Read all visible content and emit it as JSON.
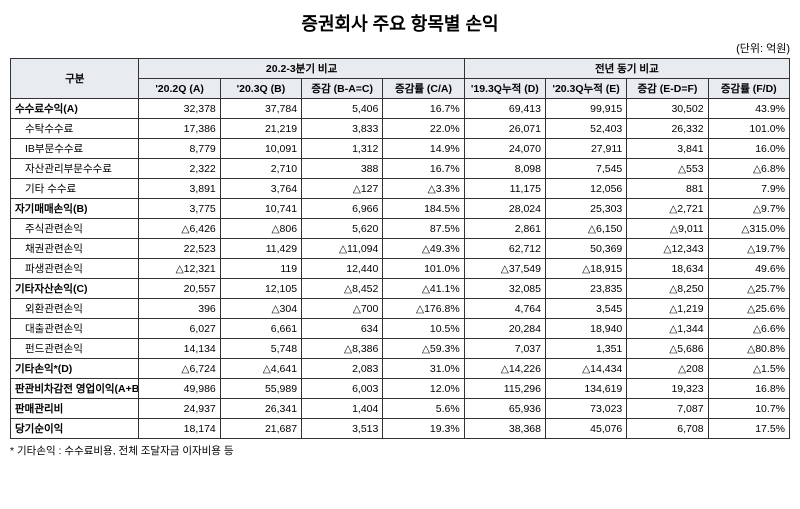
{
  "title": "증권회사 주요 항목별 손익",
  "unit": "(단위: 억원)",
  "footnote": "* 기타손익 : 수수료비용, 전체 조달자금 이자비용 등",
  "header": {
    "col0": "구분",
    "group1": "20.2-3분기 비교",
    "group2": "전년 동기 비교",
    "h1": "'20.2Q\n(A)",
    "h2": "'20.3Q\n(B)",
    "h3": "증감\n(B-A=C)",
    "h4": "증감률\n(C/A)",
    "h5": "'19.3Q누적\n(D)",
    "h6": "'20.3Q누적\n(E)",
    "h7": "증감\n(E-D=F)",
    "h8": "증감률\n(F/D)"
  },
  "rows": [
    {
      "label": "수수료수익(A)",
      "sub": false,
      "c": [
        "32,378",
        "37,784",
        "5,406",
        "16.7%",
        "69,413",
        "99,915",
        "30,502",
        "43.9%"
      ]
    },
    {
      "label": "수탁수수료",
      "sub": true,
      "c": [
        "17,386",
        "21,219",
        "3,833",
        "22.0%",
        "26,071",
        "52,403",
        "26,332",
        "101.0%"
      ]
    },
    {
      "label": "IB부문수수료",
      "sub": true,
      "c": [
        "8,779",
        "10,091",
        "1,312",
        "14.9%",
        "24,070",
        "27,911",
        "3,841",
        "16.0%"
      ]
    },
    {
      "label": "자산관리부문수수료",
      "sub": true,
      "c": [
        "2,322",
        "2,710",
        "388",
        "16.7%",
        "8,098",
        "7,545",
        "△553",
        "△6.8%"
      ]
    },
    {
      "label": "기타 수수료",
      "sub": true,
      "c": [
        "3,891",
        "3,764",
        "△127",
        "△3.3%",
        "11,175",
        "12,056",
        "881",
        "7.9%"
      ]
    },
    {
      "label": "자기매매손익(B)",
      "sub": false,
      "c": [
        "3,775",
        "10,741",
        "6,966",
        "184.5%",
        "28,024",
        "25,303",
        "△2,721",
        "△9.7%"
      ]
    },
    {
      "label": "주식관련손익",
      "sub": true,
      "c": [
        "△6,426",
        "△806",
        "5,620",
        "87.5%",
        "2,861",
        "△6,150",
        "△9,011",
        "△315.0%"
      ]
    },
    {
      "label": "채권관련손익",
      "sub": true,
      "c": [
        "22,523",
        "11,429",
        "△11,094",
        "△49.3%",
        "62,712",
        "50,369",
        "△12,343",
        "△19.7%"
      ]
    },
    {
      "label": "파생관련손익",
      "sub": true,
      "c": [
        "△12,321",
        "119",
        "12,440",
        "101.0%",
        "△37,549",
        "△18,915",
        "18,634",
        "49.6%"
      ]
    },
    {
      "label": "기타자산손익(C)",
      "sub": false,
      "c": [
        "20,557",
        "12,105",
        "△8,452",
        "△41.1%",
        "32,085",
        "23,835",
        "△8,250",
        "△25.7%"
      ]
    },
    {
      "label": "외환관련손익",
      "sub": true,
      "c": [
        "396",
        "△304",
        "△700",
        "△176.8%",
        "4,764",
        "3,545",
        "△1,219",
        "△25.6%"
      ]
    },
    {
      "label": "대출관련손익",
      "sub": true,
      "c": [
        "6,027",
        "6,661",
        "634",
        "10.5%",
        "20,284",
        "18,940",
        "△1,344",
        "△6.6%"
      ]
    },
    {
      "label": "펀드관련손익",
      "sub": true,
      "c": [
        "14,134",
        "5,748",
        "△8,386",
        "△59.3%",
        "7,037",
        "1,351",
        "△5,686",
        "△80.8%"
      ]
    },
    {
      "label": "기타손익*(D)",
      "sub": false,
      "c": [
        "△6,724",
        "△4,641",
        "2,083",
        "31.0%",
        "△14,226",
        "△14,434",
        "△208",
        "△1.5%"
      ]
    },
    {
      "label": "판관비차감전\n영업이익(A+B+C+D)",
      "sub": false,
      "c": [
        "49,986",
        "55,989",
        "6,003",
        "12.0%",
        "115,296",
        "134,619",
        "19,323",
        "16.8%"
      ]
    },
    {
      "label": "판매관리비",
      "sub": false,
      "c": [
        "24,937",
        "26,341",
        "1,404",
        "5.6%",
        "65,936",
        "73,023",
        "7,087",
        "10.7%"
      ]
    },
    {
      "label": "당기순이익",
      "sub": false,
      "c": [
        "18,174",
        "21,687",
        "3,513",
        "19.3%",
        "38,368",
        "45,076",
        "6,708",
        "17.5%"
      ]
    }
  ]
}
